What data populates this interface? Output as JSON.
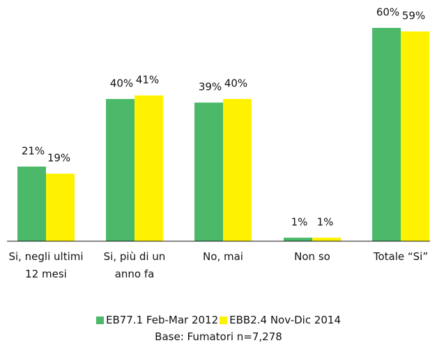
{
  "chart_data": {
    "type": "bar",
    "categories": [
      "Si, negli ultimi 12 mesi",
      "Si, più di un anno fa",
      "No, mai",
      "Non so",
      "Totale “Si”"
    ],
    "series": [
      {
        "name": "EB77.1 Feb-Mar 2012",
        "color": "#4cb96a",
        "values": [
          21,
          40,
          39,
          1,
          60
        ],
        "value_labels": [
          "21%",
          "40%",
          "39%",
          "1%",
          "60%"
        ]
      },
      {
        "name": "EBB2.4 Nov-Dic 2014",
        "color": "#fff200",
        "values": [
          19,
          41,
          40,
          1,
          59
        ],
        "value_labels": [
          "19%",
          "41%",
          "40%",
          "1%",
          "59%"
        ]
      }
    ],
    "ylim": [
      0,
      60
    ],
    "note": "Base: Fumatori n=7,278"
  }
}
